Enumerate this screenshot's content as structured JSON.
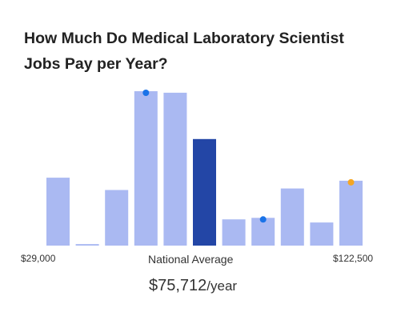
{
  "title": "How Much Do Medical Laboratory Scientist Jobs Pay per Year?",
  "chart_data": {
    "type": "bar",
    "x_min_label": "$29,000",
    "x_max_label": "$122,500",
    "center_label": "National Average",
    "average_value": "$75,712",
    "average_unit": "/year",
    "values": [
      44,
      1,
      36,
      100,
      99,
      69,
      17,
      18,
      37,
      15,
      42
    ],
    "highlight_index": 5,
    "markers": [
      {
        "bar_index": 3,
        "color": "#1a73e8"
      },
      {
        "bar_index": 7,
        "color": "#1a73e8"
      },
      {
        "bar_index": 10,
        "color": "#f5a623"
      }
    ],
    "colors": {
      "bar": "#aab9f2",
      "highlight": "#2346a6"
    }
  }
}
